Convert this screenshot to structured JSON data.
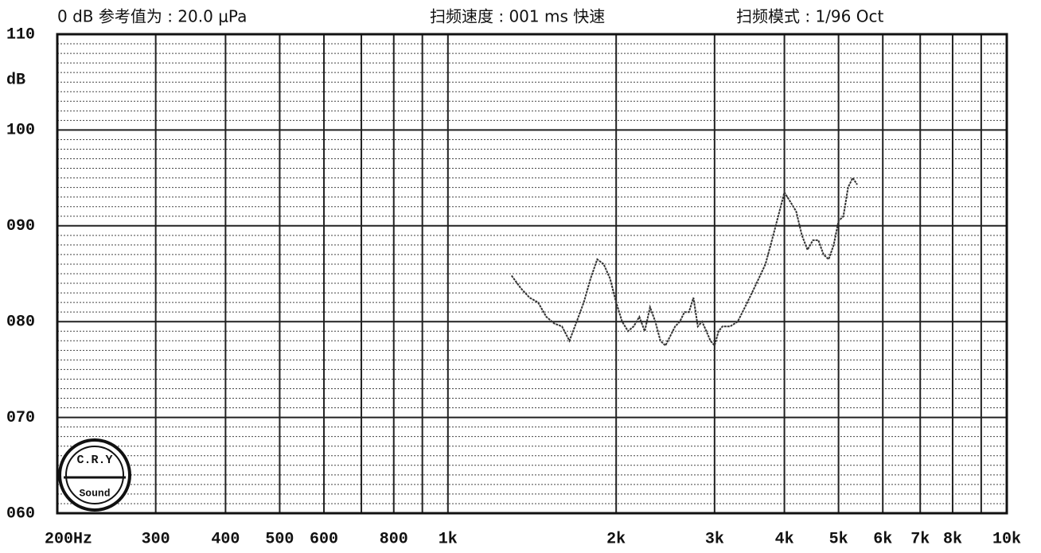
{
  "chart_data": {
    "type": "line",
    "reference": "0 dB 参考值为 : 20.0 μPa",
    "sweep_speed": "扫频速度 : 001 ms 快速",
    "sweep_mode": "扫频模式 : 1/96  Oct",
    "ylabel": "dB",
    "logo": [
      "C.R.Y",
      "Sound"
    ],
    "x_log": true,
    "xlim": [
      200,
      10000
    ],
    "ylim": [
      60,
      110
    ],
    "xticks": [
      {
        "value": 200,
        "label": "200Hz"
      },
      300,
      400,
      500,
      600,
      800,
      {
        "value": 1000,
        "label": "1k"
      },
      {
        "value": 2000,
        "label": "2k"
      },
      {
        "value": 3000,
        "label": "3k"
      },
      {
        "value": 4000,
        "label": "4k"
      },
      {
        "value": 5000,
        "label": "5k"
      },
      {
        "value": 6000,
        "label": "6k"
      },
      {
        "value": 7000,
        "label": "7k"
      },
      {
        "value": 8000,
        "label": "8k"
      },
      {
        "value": 10000,
        "label": "10k"
      }
    ],
    "xgrid_extra": [
      700,
      900,
      9000
    ],
    "yticks": [
      {
        "value": 60,
        "label": "060"
      },
      {
        "value": 70,
        "label": "070"
      },
      {
        "value": 80,
        "label": "080"
      },
      {
        "value": 90,
        "label": "090"
      },
      100,
      110
    ],
    "ydotted_step": 1,
    "grid": true,
    "color": "#333333",
    "x": [
      1300,
      1350,
      1400,
      1450,
      1500,
      1550,
      1600,
      1650,
      1700,
      1750,
      1800,
      1850,
      1900,
      1950,
      2000,
      2050,
      2100,
      2150,
      2200,
      2250,
      2300,
      2350,
      2400,
      2450,
      2500,
      2550,
      2600,
      2650,
      2700,
      2750,
      2800,
      2850,
      2900,
      2950,
      3000,
      3050,
      3100,
      3200,
      3300,
      3400,
      3500,
      3600,
      3700,
      3800,
      3900,
      4000,
      4100,
      4200,
      4300,
      4400,
      4500,
      4600,
      4700,
      4800,
      4900,
      5000,
      5100,
      5200,
      5300,
      5400
    ],
    "values": [
      84.8,
      83.5,
      82.5,
      82,
      80.5,
      79.8,
      79.5,
      78,
      80,
      82,
      84.5,
      86.5,
      86,
      84.5,
      82,
      80,
      79,
      79.5,
      80.5,
      79,
      81.5,
      80,
      78,
      77.5,
      78.5,
      79.5,
      80,
      81,
      81,
      82.5,
      79.5,
      80,
      79,
      78,
      77.5,
      79,
      79.5,
      79.5,
      80,
      81.5,
      83,
      84.5,
      86,
      88.5,
      91,
      93.5,
      92.5,
      91.5,
      89,
      87.5,
      88.5,
      88.5,
      87,
      86.5,
      88,
      90.5,
      91,
      94,
      95,
      94.3
    ]
  }
}
